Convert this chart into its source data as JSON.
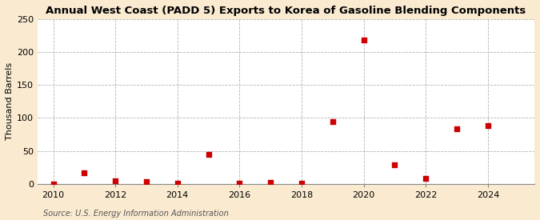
{
  "title": "Annual West Coast (PADD 5) Exports to Korea of Gasoline Blending Components",
  "ylabel": "Thousand Barrels",
  "source": "Source: U.S. Energy Information Administration",
  "years": [
    2010,
    2011,
    2012,
    2013,
    2014,
    2015,
    2016,
    2017,
    2018,
    2019,
    2020,
    2021,
    2022,
    2023,
    2024
  ],
  "values": [
    0,
    17,
    5,
    3,
    1,
    45,
    1,
    2,
    1,
    95,
    218,
    29,
    8,
    84,
    88
  ],
  "xlim": [
    2009.5,
    2025.5
  ],
  "ylim": [
    0,
    250
  ],
  "yticks": [
    0,
    50,
    100,
    150,
    200,
    250
  ],
  "xticks": [
    2010,
    2012,
    2014,
    2016,
    2018,
    2020,
    2022,
    2024
  ],
  "marker_color": "#cc0000",
  "marker": "s",
  "marker_size": 4,
  "plot_bg_color": "#ffffff",
  "fig_bg_color": "#faebd0",
  "grid_color": "#aaaaaa",
  "title_fontsize": 9.5,
  "label_fontsize": 8,
  "tick_fontsize": 8,
  "source_fontsize": 7
}
